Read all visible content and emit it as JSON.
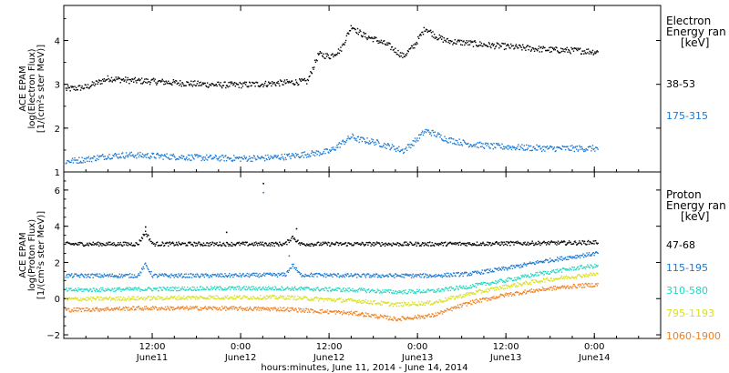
{
  "xaxis": {
    "title": "hours:minutes, June 11, 2014 - June 14, 2014",
    "ticks": [
      {
        "t": 12,
        "time": "12:00",
        "day": "June11"
      },
      {
        "t": 24,
        "time": "0:00",
        "day": "June12"
      },
      {
        "t": 36,
        "time": "12:00",
        "day": "June12"
      },
      {
        "t": 48,
        "time": "0:00",
        "day": "June13"
      },
      {
        "t": 60,
        "time": "12:00",
        "day": "June13"
      },
      {
        "t": 72,
        "time": "0:00",
        "day": "June14"
      }
    ],
    "range_hours": [
      0,
      81
    ]
  },
  "chart_data": [
    {
      "type": "scatter",
      "panel": "electron",
      "ylabel": [
        "ACE EPAM",
        "log(Electron Flux)",
        "[1/(cm²s ster MeV)]"
      ],
      "ylim": [
        1,
        4.8
      ],
      "yticks": [
        1,
        2,
        3,
        4
      ],
      "legend": {
        "title": [
          "Electron",
          "Energy ran",
          "[keV]"
        ]
      },
      "series": [
        {
          "name": "38-53",
          "color": "#000000",
          "x": [
            0,
            3,
            6,
            9,
            12,
            15,
            18,
            21,
            24,
            27,
            30,
            33,
            34.5,
            36,
            37.5,
            39,
            40,
            41,
            42,
            44,
            46,
            47.5,
            49,
            50.5,
            52,
            55,
            58,
            62,
            66,
            70,
            72.5
          ],
          "y": [
            2.9,
            2.95,
            3.15,
            3.1,
            3.08,
            3.05,
            3.02,
            3.0,
            3.0,
            3.02,
            3.05,
            3.08,
            3.7,
            3.65,
            3.8,
            4.35,
            4.2,
            4.1,
            4.05,
            3.9,
            3.65,
            3.9,
            4.3,
            4.1,
            4.0,
            3.95,
            3.9,
            3.85,
            3.8,
            3.78,
            3.75
          ]
        },
        {
          "name": "175-315",
          "color": "#1a78d2",
          "x": [
            0,
            3,
            6,
            9,
            12,
            15,
            18,
            21,
            24,
            27,
            30,
            33,
            36,
            39,
            40,
            42,
            44,
            46,
            47.5,
            49,
            50,
            52,
            55,
            58,
            62,
            66,
            70,
            72.5
          ],
          "y": [
            1.25,
            1.3,
            1.38,
            1.4,
            1.38,
            1.36,
            1.34,
            1.33,
            1.32,
            1.33,
            1.36,
            1.42,
            1.48,
            1.82,
            1.75,
            1.7,
            1.6,
            1.5,
            1.7,
            1.95,
            1.9,
            1.75,
            1.65,
            1.6,
            1.57,
            1.55,
            1.55,
            1.55
          ]
        }
      ]
    },
    {
      "type": "scatter",
      "panel": "proton",
      "ylabel": [
        "ACE EPAM",
        "log(Proton Flux)",
        "[1/(cm²s ster MeV)]"
      ],
      "ylim": [
        -2.2,
        7
      ],
      "yticks": [
        -2,
        0,
        2,
        4,
        6
      ],
      "legend": {
        "title": [
          "Proton",
          "Energy ran",
          "[keV]"
        ]
      },
      "series": [
        {
          "name": "47-68",
          "color": "#000000",
          "x": [
            0,
            10,
            11,
            12,
            20,
            30,
            31,
            32,
            40,
            50,
            60,
            70,
            72.5
          ],
          "y": [
            3.05,
            3.05,
            3.7,
            3.05,
            3.05,
            3.05,
            3.45,
            3.05,
            3.05,
            3.05,
            3.08,
            3.12,
            3.15
          ],
          "outliers": [
            [
              11,
              4.0
            ],
            [
              22,
              3.7
            ],
            [
              27,
              6.4
            ],
            [
              31.5,
              3.9
            ]
          ]
        },
        {
          "name": "115-195",
          "color": "#1a78d2",
          "x": [
            0,
            10,
            11,
            12,
            20,
            30,
            31,
            32,
            40,
            50,
            55,
            60,
            65,
            70,
            72.5
          ],
          "y": [
            1.3,
            1.3,
            1.9,
            1.3,
            1.3,
            1.35,
            1.9,
            1.35,
            1.3,
            1.3,
            1.4,
            1.7,
            2.1,
            2.4,
            2.55
          ],
          "outliers": [
            [
              27,
              5.9
            ],
            [
              30.5,
              2.4
            ]
          ]
        },
        {
          "name": "310-580",
          "color": "#20d8c0",
          "x": [
            0,
            10,
            20,
            30,
            40,
            45,
            50,
            55,
            60,
            65,
            70,
            72.5
          ],
          "y": [
            0.5,
            0.55,
            0.6,
            0.6,
            0.5,
            0.4,
            0.45,
            0.7,
            1.05,
            1.45,
            1.75,
            1.85
          ]
        },
        {
          "name": "795-1193",
          "color": "#d8e020",
          "x": [
            0,
            10,
            20,
            30,
            40,
            45,
            50,
            55,
            60,
            65,
            70,
            72.5
          ],
          "y": [
            0.0,
            0.05,
            0.1,
            0.1,
            -0.1,
            -0.3,
            -0.2,
            0.3,
            0.7,
            1.05,
            1.3,
            1.4
          ]
        },
        {
          "name": "1060-1900",
          "color": "#f08020",
          "x": [
            0,
            10,
            20,
            30,
            40,
            45,
            50,
            55,
            60,
            65,
            70,
            72.5
          ],
          "y": [
            -0.6,
            -0.5,
            -0.5,
            -0.55,
            -0.8,
            -1.1,
            -0.9,
            -0.2,
            0.25,
            0.55,
            0.75,
            0.8
          ]
        }
      ]
    }
  ]
}
